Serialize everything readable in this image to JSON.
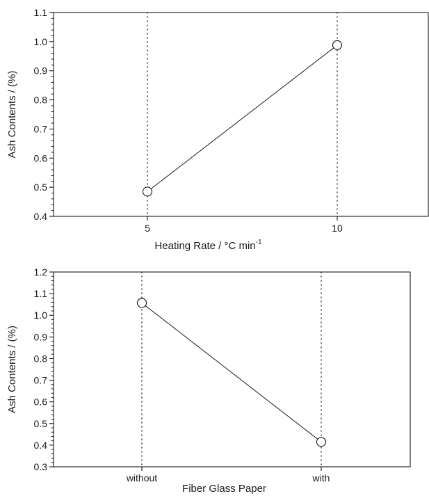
{
  "chart_data": [
    {
      "type": "line",
      "xlabel": "Heating Rate / °C min",
      "xlabel_sup": "-1",
      "ylabel": "Ash Contents / (%)",
      "categories": [
        "5",
        "10"
      ],
      "series": [
        {
          "values": [
            0.485,
            0.988
          ]
        }
      ],
      "ylim": [
        0.4,
        1.1
      ],
      "yticks": [
        "0.4",
        "0.5",
        "0.6",
        "0.7",
        "0.8",
        "0.9",
        "1.0",
        "1.1"
      ],
      "marker": "open-circle"
    },
    {
      "type": "line",
      "xlabel": "Fiber Glass Paper",
      "xlabel_sup": "",
      "ylabel": "Ash Contents / (%)",
      "categories": [
        "without",
        "with"
      ],
      "series": [
        {
          "values": [
            1.057,
            0.415
          ]
        }
      ],
      "ylim": [
        0.3,
        1.2
      ],
      "yticks": [
        "0.3",
        "0.4",
        "0.5",
        "0.6",
        "0.7",
        "0.8",
        "0.9",
        "1.0",
        "1.1",
        "1.2"
      ],
      "marker": "open-circle"
    }
  ]
}
